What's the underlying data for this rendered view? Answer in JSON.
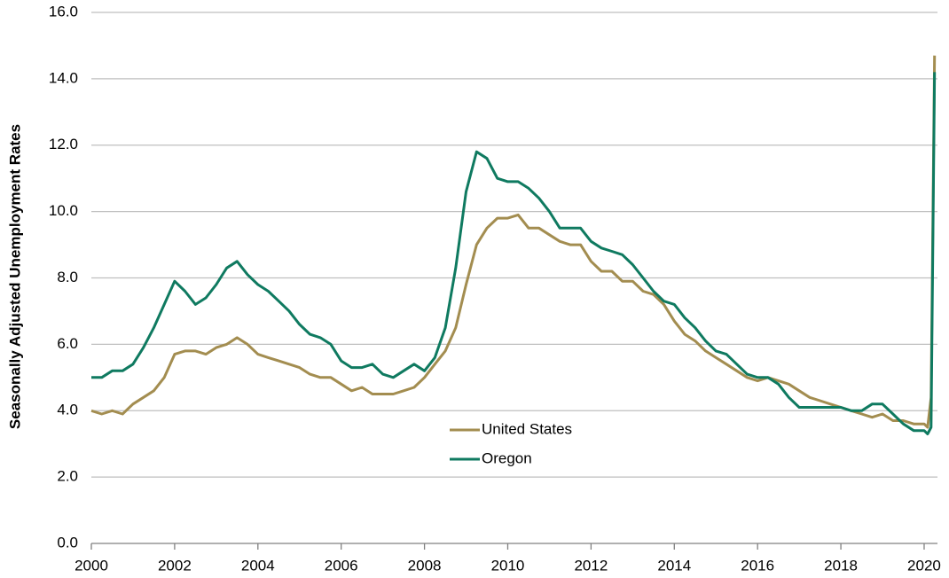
{
  "chart_data": {
    "type": "line",
    "y_label": "Seasonally Adjusted Unemployment Rates",
    "x": [
      2000,
      2000.25,
      2000.5,
      2000.75,
      2001,
      2001.25,
      2001.5,
      2001.75,
      2002,
      2002.25,
      2002.5,
      2002.75,
      2003,
      2003.25,
      2003.5,
      2003.75,
      2004,
      2004.25,
      2004.5,
      2004.75,
      2005,
      2005.25,
      2005.5,
      2005.75,
      2006,
      2006.25,
      2006.5,
      2006.75,
      2007,
      2007.25,
      2007.5,
      2007.75,
      2008,
      2008.25,
      2008.5,
      2008.75,
      2009,
      2009.25,
      2009.5,
      2009.75,
      2010,
      2010.25,
      2010.5,
      2010.75,
      2011,
      2011.25,
      2011.5,
      2011.75,
      2012,
      2012.25,
      2012.5,
      2012.75,
      2013,
      2013.25,
      2013.5,
      2013.75,
      2014,
      2014.25,
      2014.5,
      2014.75,
      2015,
      2015.25,
      2015.5,
      2015.75,
      2016,
      2016.25,
      2016.5,
      2016.75,
      2017,
      2017.25,
      2017.5,
      2017.75,
      2018,
      2018.25,
      2018.5,
      2018.75,
      2019,
      2019.25,
      2019.5,
      2019.75,
      2020,
      2020.083,
      2020.167,
      2020.25
    ],
    "series": [
      {
        "name": "United States",
        "color": "#a38d50",
        "values": [
          4.0,
          3.9,
          4.0,
          3.9,
          4.2,
          4.4,
          4.6,
          5.0,
          5.7,
          5.8,
          5.8,
          5.7,
          5.9,
          6.0,
          6.2,
          6.0,
          5.7,
          5.6,
          5.5,
          5.4,
          5.3,
          5.1,
          5.0,
          5.0,
          4.8,
          4.6,
          4.7,
          4.5,
          4.5,
          4.5,
          4.6,
          4.7,
          5.0,
          5.4,
          5.8,
          6.5,
          7.8,
          9.0,
          9.5,
          9.8,
          9.8,
          9.9,
          9.5,
          9.5,
          9.3,
          9.1,
          9.0,
          9.0,
          8.5,
          8.2,
          8.2,
          7.9,
          7.9,
          7.6,
          7.5,
          7.2,
          6.7,
          6.3,
          6.1,
          5.8,
          5.6,
          5.4,
          5.2,
          5.0,
          4.9,
          5.0,
          4.9,
          4.8,
          4.6,
          4.4,
          4.3,
          4.2,
          4.1,
          4.0,
          3.9,
          3.8,
          3.9,
          3.7,
          3.7,
          3.6,
          3.6,
          3.5,
          4.4,
          14.7
        ]
      },
      {
        "name": "Oregon",
        "color": "#0f7a60",
        "values": [
          5.0,
          5.0,
          5.2,
          5.2,
          5.4,
          5.9,
          6.5,
          7.2,
          7.9,
          7.6,
          7.2,
          7.4,
          7.8,
          8.3,
          8.5,
          8.1,
          7.8,
          7.6,
          7.3,
          7.0,
          6.6,
          6.3,
          6.2,
          6.0,
          5.5,
          5.3,
          5.3,
          5.4,
          5.1,
          5.0,
          5.2,
          5.4,
          5.2,
          5.6,
          6.5,
          8.3,
          10.6,
          11.8,
          11.6,
          11.0,
          10.9,
          10.9,
          10.7,
          10.4,
          10.0,
          9.5,
          9.5,
          9.5,
          9.1,
          8.9,
          8.8,
          8.7,
          8.4,
          8.0,
          7.6,
          7.3,
          7.2,
          6.8,
          6.5,
          6.1,
          5.8,
          5.7,
          5.4,
          5.1,
          5.0,
          5.0,
          4.8,
          4.4,
          4.1,
          4.1,
          4.1,
          4.1,
          4.1,
          4.0,
          4.0,
          4.2,
          4.2,
          3.9,
          3.6,
          3.4,
          3.4,
          3.3,
          3.5,
          14.2
        ]
      }
    ],
    "xlim": [
      2000,
      2020.32
    ],
    "xticks": [
      2000,
      2002,
      2004,
      2006,
      2008,
      2010,
      2012,
      2014,
      2016,
      2018,
      2020
    ],
    "ylim": [
      0,
      16
    ],
    "yticks": [
      {
        "value": 0,
        "label": "0.0"
      },
      {
        "value": 2,
        "label": "2.0"
      },
      {
        "value": 4,
        "label": "4.0"
      },
      {
        "value": 6,
        "label": "6.0"
      },
      {
        "value": 8,
        "label": "8.0"
      },
      {
        "value": 10,
        "label": "10.0"
      },
      {
        "value": 12,
        "label": "12.0"
      },
      {
        "value": 14,
        "label": "14.0"
      },
      {
        "value": 16,
        "label": "16.0"
      }
    ],
    "grid": true,
    "legend": "center"
  }
}
